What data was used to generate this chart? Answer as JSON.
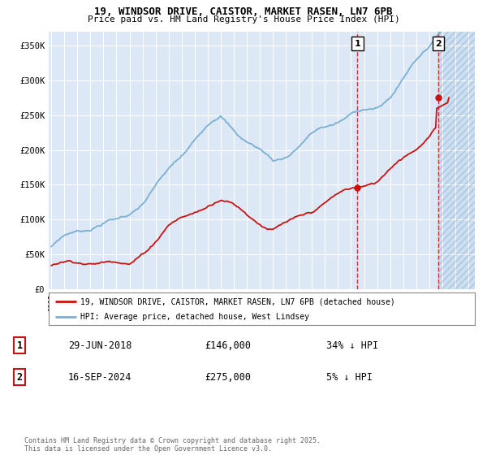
{
  "title_line1": "19, WINDSOR DRIVE, CAISTOR, MARKET RASEN, LN7 6PB",
  "title_line2": "Price paid vs. HM Land Registry's House Price Index (HPI)",
  "ylabel_ticks": [
    "£0",
    "£50K",
    "£100K",
    "£150K",
    "£200K",
    "£250K",
    "£300K",
    "£350K"
  ],
  "ytick_values": [
    0,
    50000,
    100000,
    150000,
    200000,
    250000,
    300000,
    350000
  ],
  "ylim": [
    0,
    370000
  ],
  "xlim_start": 1994.8,
  "xlim_end": 2027.5,
  "x_start_year": 1995,
  "x_end_year": 2027,
  "plot_bg_color": "#dce8f5",
  "hpi_color": "#7bafd4",
  "price_color": "#cc1111",
  "event1_x": 2018.49,
  "event1_y": 146000,
  "event1_label": "1",
  "event2_x": 2024.71,
  "event2_y": 275000,
  "event2_label": "2",
  "future_shade_start": 2024.71,
  "future_shade_end": 2027.5,
  "dashed_line1_x": 2018.49,
  "dashed_line2_x": 2024.71,
  "legend_entry1": "19, WINDSOR DRIVE, CAISTOR, MARKET RASEN, LN7 6PB (detached house)",
  "legend_entry2": "HPI: Average price, detached house, West Lindsey",
  "note1_label": "1",
  "note1_date": "29-JUN-2018",
  "note1_price": "£146,000",
  "note1_hpi": "34% ↓ HPI",
  "note2_label": "2",
  "note2_date": "16-SEP-2024",
  "note2_price": "£275,000",
  "note2_hpi": "5% ↓ HPI",
  "footer": "Contains HM Land Registry data © Crown copyright and database right 2025.\nThis data is licensed under the Open Government Licence v3.0."
}
